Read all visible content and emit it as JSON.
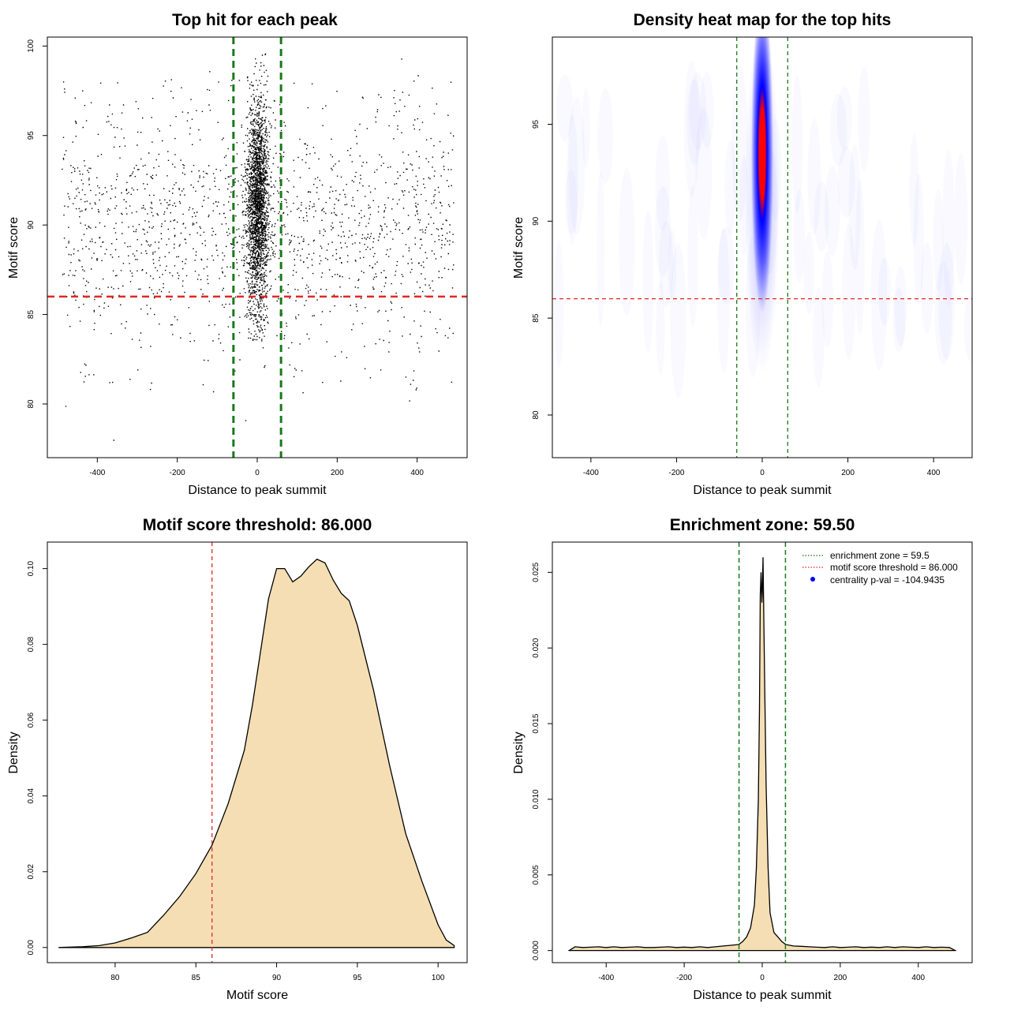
{
  "colors": {
    "threshold": "#e32626",
    "zone": "#1a7a1a",
    "fill": "#f5deb3",
    "blue": "#0000ff",
    "red": "#ff0000"
  },
  "chart_data": [
    {
      "id": "scatter",
      "type": "scatter",
      "title": "Top hit for each peak",
      "xlabel": "Distance to peak summit",
      "ylabel": "Motif score",
      "xlim": [
        -525,
        525
      ],
      "ylim": [
        77,
        100.5
      ],
      "xticks": [
        -400,
        -200,
        0,
        200,
        400
      ],
      "yticks": [
        80,
        85,
        90,
        95,
        100
      ],
      "hline": 86,
      "vlines": [
        -59.5,
        59.5
      ],
      "points": {
        "description_of_distribution": "dense central column within about ±40 of summit, scores 84–99.6; sparse uniform background over -490..490, scores about 79–98",
        "central_count": 2300,
        "central_x_sd": 14,
        "central_y_range": [
          83.5,
          99.6
        ],
        "background_count": 1600,
        "background_x_range": [
          -490,
          490
        ],
        "background_y_mean": 90,
        "background_y_sd": 3.5,
        "outliers": [
          {
            "x": -360,
            "y": 78
          },
          {
            "x": -480,
            "y": 79.9
          },
          {
            "x": -30,
            "y": 79.1
          },
          {
            "x": 380,
            "y": 80.2
          },
          {
            "x": 360,
            "y": 99.3
          },
          {
            "x": -120,
            "y": 98.6
          }
        ]
      }
    },
    {
      "id": "heatmap",
      "type": "heatmap",
      "title": "Density heat map for the top hits",
      "xlabel": "Distance to peak summit",
      "ylabel": "Motif score",
      "xlim": [
        -490,
        490
      ],
      "ylim": [
        77.8,
        99.5
      ],
      "xticks": [
        -400,
        -200,
        0,
        200,
        400
      ],
      "yticks": [
        80,
        85,
        90,
        95
      ],
      "hline": 86,
      "vlines": [
        -59.5,
        59.5
      ],
      "hotspot": {
        "x": 0,
        "y_range": [
          83,
          99.5
        ],
        "peak_y": 93.5
      },
      "color_scale": [
        "white",
        "blue",
        "red"
      ]
    },
    {
      "id": "score_density",
      "type": "area",
      "title": "Motif score threshold: 86.000",
      "xlabel": "Motif score",
      "ylabel": "Density",
      "xlim": [
        75.8,
        101.8
      ],
      "ylim": [
        -0.004,
        0.107
      ],
      "xticks": [
        80,
        85,
        90,
        95,
        100
      ],
      "yticks": [
        0.0,
        0.02,
        0.04,
        0.06,
        0.08,
        0.1
      ],
      "ytick_labels": [
        "0.00",
        "0.02",
        "0.04",
        "0.06",
        "0.08",
        "0.10"
      ],
      "vline": 86,
      "x": [
        76.5,
        78,
        79,
        80,
        81,
        82,
        83,
        84,
        85,
        86,
        87,
        88,
        88.5,
        89,
        89.5,
        90,
        90.5,
        91,
        91.5,
        92,
        92.5,
        93,
        93.5,
        94,
        94.5,
        95,
        96,
        97,
        98,
        99,
        100,
        100.5,
        101
      ],
      "y": [
        0.0,
        0.0002,
        0.0005,
        0.0012,
        0.0025,
        0.004,
        0.0085,
        0.0135,
        0.0195,
        0.027,
        0.038,
        0.052,
        0.064,
        0.078,
        0.092,
        0.1,
        0.1,
        0.0965,
        0.098,
        0.1005,
        0.1025,
        0.1015,
        0.097,
        0.0935,
        0.0915,
        0.085,
        0.068,
        0.048,
        0.03,
        0.0175,
        0.006,
        0.002,
        0.0005
      ]
    },
    {
      "id": "distance_density",
      "type": "area",
      "title": "Enrichment zone: 59.50",
      "xlabel": "Distance to peak summit",
      "ylabel": "Density",
      "xlim": [
        -538,
        538
      ],
      "ylim": [
        -0.0008,
        0.027
      ],
      "xticks": [
        -400,
        -200,
        0,
        200,
        400
      ],
      "yticks": [
        0.0,
        0.005,
        0.01,
        0.015,
        0.02,
        0.025
      ],
      "ytick_labels": [
        "0.000",
        "0.005",
        "0.010",
        "0.015",
        "0.020",
        "0.025"
      ],
      "vlines": [
        -59.5,
        59.5
      ],
      "x": [
        -495,
        -480,
        -460,
        -440,
        -420,
        -400,
        -380,
        -360,
        -340,
        -320,
        -300,
        -280,
        -260,
        -240,
        -220,
        -200,
        -180,
        -160,
        -140,
        -120,
        -100,
        -80,
        -60,
        -50,
        -40,
        -30,
        -20,
        -15,
        -10,
        -7,
        -5,
        -3,
        -1,
        0,
        2,
        4,
        6,
        10,
        15,
        20,
        30,
        40,
        50,
        60,
        80,
        100,
        120,
        140,
        160,
        180,
        200,
        220,
        240,
        260,
        280,
        300,
        320,
        340,
        360,
        380,
        400,
        420,
        440,
        460,
        480,
        495
      ],
      "y": [
        0.0,
        0.00025,
        0.0002,
        0.00022,
        0.00025,
        0.0002,
        0.00025,
        0.0002,
        0.00022,
        0.00025,
        0.0002,
        0.0002,
        0.00022,
        0.00025,
        0.0002,
        0.00023,
        0.0002,
        0.00025,
        0.0002,
        0.00025,
        0.0003,
        0.00035,
        0.0004,
        0.0006,
        0.0009,
        0.0015,
        0.003,
        0.0055,
        0.01,
        0.016,
        0.0235,
        0.025,
        0.023,
        0.0235,
        0.026,
        0.022,
        0.018,
        0.011,
        0.0055,
        0.0025,
        0.0012,
        0.0009,
        0.0006,
        0.0004,
        0.0003,
        0.00028,
        0.00025,
        0.00022,
        0.0002,
        0.00025,
        0.0002,
        0.00022,
        0.00025,
        0.0002,
        0.00023,
        0.0002,
        0.00025,
        0.0002,
        0.00025,
        0.00022,
        0.0002,
        0.00025,
        0.0002,
        0.00022,
        0.0002,
        0.0
      ],
      "legend": {
        "position": "top-right",
        "items": [
          {
            "label": "enrichment zone = 59.5",
            "kind": "dotted-line",
            "color": "zone"
          },
          {
            "label": "motif score threshold = 86.000",
            "kind": "dotted-line",
            "color": "threshold"
          },
          {
            "label": "centrality p-val = -104.9435",
            "kind": "point",
            "color": "blue"
          }
        ]
      }
    }
  ]
}
